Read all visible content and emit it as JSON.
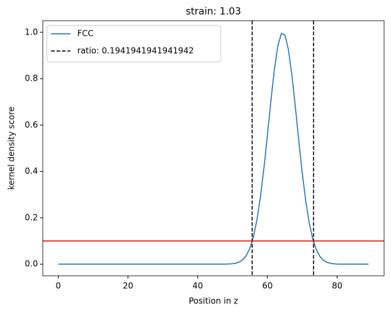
{
  "chart_data": {
    "type": "line",
    "title": "strain: 1.03",
    "x_label": "Position in z",
    "y_label": "kernel density score",
    "x": [
      0,
      1,
      2,
      3,
      4,
      5,
      6,
      7,
      8,
      9,
      10,
      11,
      12,
      13,
      14,
      15,
      16,
      17,
      18,
      19,
      20,
      21,
      22,
      23,
      24,
      25,
      26,
      27,
      28,
      29,
      30,
      31,
      32,
      33,
      34,
      35,
      36,
      37,
      38,
      39,
      40,
      41,
      42,
      43,
      44,
      45,
      46,
      47,
      48,
      49,
      50,
      51,
      52,
      53,
      54,
      55,
      56,
      57,
      58,
      59,
      60,
      61,
      62,
      63,
      64,
      65,
      66,
      67,
      68,
      69,
      70,
      71,
      72,
      73,
      74,
      75,
      76,
      77,
      78,
      79,
      80,
      81,
      82,
      83,
      84,
      85,
      86,
      87,
      88,
      89
    ],
    "series": [
      {
        "name": "FCC",
        "color": "#1f77b4",
        "values": [
          0,
          0,
          0,
          0,
          0,
          0,
          0,
          0,
          0,
          0,
          0,
          0,
          0,
          0,
          0,
          0,
          0,
          0,
          0,
          0,
          0,
          0,
          0,
          0,
          0,
          0,
          0,
          0,
          0,
          0,
          0,
          0,
          0,
          0,
          0,
          0,
          0,
          0,
          0,
          0,
          0,
          0,
          0,
          0,
          0,
          0,
          0,
          0.0001,
          0.0003,
          0.0008,
          0.002,
          0.0046,
          0.0099,
          0.0202,
          0.0388,
          0.0704,
          0.12,
          0.193,
          0.292,
          0.416,
          0.559,
          0.707,
          0.841,
          0.943,
          0.995,
          0.989,
          0.926,
          0.816,
          0.678,
          0.53,
          0.39,
          0.27,
          0.176,
          0.108,
          0.0628,
          0.0343,
          0.0176,
          0.0085,
          0.0039,
          0.0017,
          0.0007,
          0.0003,
          0.0001,
          0,
          0,
          0,
          0,
          0,
          0,
          0
        ]
      }
    ],
    "vlines": {
      "name": "ratio: 0.1941941941941942",
      "color": "#000000",
      "values": [
        55.6,
        73.2
      ]
    },
    "hline": {
      "value": 0.1,
      "color": "#ff0000"
    },
    "xlim": [
      -4.45,
      93.45
    ],
    "ylim": [
      -0.05,
      1.05
    ],
    "xticks": [
      0,
      20,
      40,
      60,
      80
    ],
    "yticks": [
      {
        "value": 0,
        "label": "0.0"
      },
      {
        "value": 0.2,
        "label": "0.2"
      },
      {
        "value": 0.4,
        "label": "0.4"
      },
      {
        "value": 0.6,
        "label": "0.6"
      },
      {
        "value": 0.8,
        "label": "0.8"
      },
      {
        "value": 1,
        "label": "1.0"
      }
    ],
    "legend": "upper left"
  }
}
